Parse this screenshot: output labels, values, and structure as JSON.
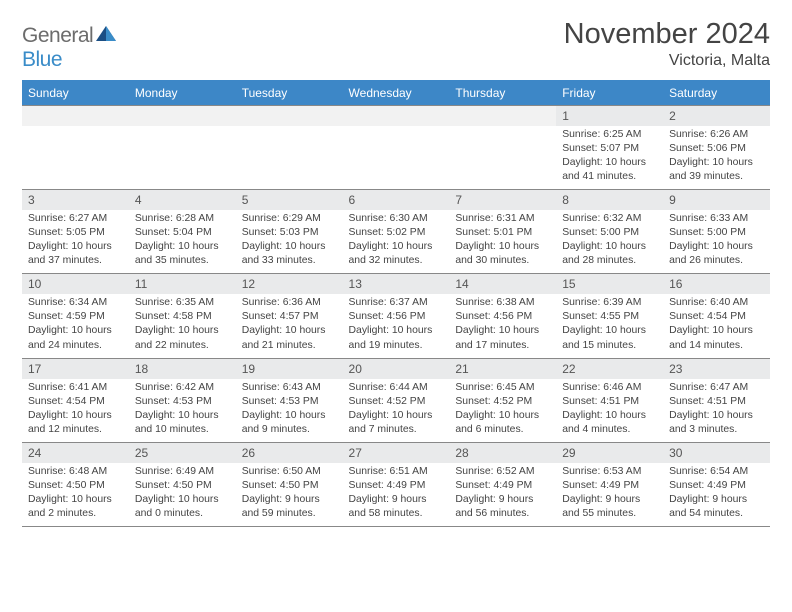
{
  "logo": {
    "text1": "General",
    "text2": "Blue"
  },
  "title": "November 2024",
  "location": "Victoria, Malta",
  "dow": [
    "Sunday",
    "Monday",
    "Tuesday",
    "Wednesday",
    "Thursday",
    "Friday",
    "Saturday"
  ],
  "colors": {
    "header_bg": "#3d87c7",
    "daynum_bg": "#e9eaeb",
    "accent": "#3a8cc8"
  },
  "weeks": [
    {
      "nums": [
        "",
        "",
        "",
        "",
        "",
        "1",
        "2"
      ],
      "cells": [
        "",
        "",
        "",
        "",
        "",
        "Sunrise: 6:25 AM\nSunset: 5:07 PM\nDaylight: 10 hours and 41 minutes.",
        "Sunrise: 6:26 AM\nSunset: 5:06 PM\nDaylight: 10 hours and 39 minutes."
      ]
    },
    {
      "nums": [
        "3",
        "4",
        "5",
        "6",
        "7",
        "8",
        "9"
      ],
      "cells": [
        "Sunrise: 6:27 AM\nSunset: 5:05 PM\nDaylight: 10 hours and 37 minutes.",
        "Sunrise: 6:28 AM\nSunset: 5:04 PM\nDaylight: 10 hours and 35 minutes.",
        "Sunrise: 6:29 AM\nSunset: 5:03 PM\nDaylight: 10 hours and 33 minutes.",
        "Sunrise: 6:30 AM\nSunset: 5:02 PM\nDaylight: 10 hours and 32 minutes.",
        "Sunrise: 6:31 AM\nSunset: 5:01 PM\nDaylight: 10 hours and 30 minutes.",
        "Sunrise: 6:32 AM\nSunset: 5:00 PM\nDaylight: 10 hours and 28 minutes.",
        "Sunrise: 6:33 AM\nSunset: 5:00 PM\nDaylight: 10 hours and 26 minutes."
      ]
    },
    {
      "nums": [
        "10",
        "11",
        "12",
        "13",
        "14",
        "15",
        "16"
      ],
      "cells": [
        "Sunrise: 6:34 AM\nSunset: 4:59 PM\nDaylight: 10 hours and 24 minutes.",
        "Sunrise: 6:35 AM\nSunset: 4:58 PM\nDaylight: 10 hours and 22 minutes.",
        "Sunrise: 6:36 AM\nSunset: 4:57 PM\nDaylight: 10 hours and 21 minutes.",
        "Sunrise: 6:37 AM\nSunset: 4:56 PM\nDaylight: 10 hours and 19 minutes.",
        "Sunrise: 6:38 AM\nSunset: 4:56 PM\nDaylight: 10 hours and 17 minutes.",
        "Sunrise: 6:39 AM\nSunset: 4:55 PM\nDaylight: 10 hours and 15 minutes.",
        "Sunrise: 6:40 AM\nSunset: 4:54 PM\nDaylight: 10 hours and 14 minutes."
      ]
    },
    {
      "nums": [
        "17",
        "18",
        "19",
        "20",
        "21",
        "22",
        "23"
      ],
      "cells": [
        "Sunrise: 6:41 AM\nSunset: 4:54 PM\nDaylight: 10 hours and 12 minutes.",
        "Sunrise: 6:42 AM\nSunset: 4:53 PM\nDaylight: 10 hours and 10 minutes.",
        "Sunrise: 6:43 AM\nSunset: 4:53 PM\nDaylight: 10 hours and 9 minutes.",
        "Sunrise: 6:44 AM\nSunset: 4:52 PM\nDaylight: 10 hours and 7 minutes.",
        "Sunrise: 6:45 AM\nSunset: 4:52 PM\nDaylight: 10 hours and 6 minutes.",
        "Sunrise: 6:46 AM\nSunset: 4:51 PM\nDaylight: 10 hours and 4 minutes.",
        "Sunrise: 6:47 AM\nSunset: 4:51 PM\nDaylight: 10 hours and 3 minutes."
      ]
    },
    {
      "nums": [
        "24",
        "25",
        "26",
        "27",
        "28",
        "29",
        "30"
      ],
      "cells": [
        "Sunrise: 6:48 AM\nSunset: 4:50 PM\nDaylight: 10 hours and 2 minutes.",
        "Sunrise: 6:49 AM\nSunset: 4:50 PM\nDaylight: 10 hours and 0 minutes.",
        "Sunrise: 6:50 AM\nSunset: 4:50 PM\nDaylight: 9 hours and 59 minutes.",
        "Sunrise: 6:51 AM\nSunset: 4:49 PM\nDaylight: 9 hours and 58 minutes.",
        "Sunrise: 6:52 AM\nSunset: 4:49 PM\nDaylight: 9 hours and 56 minutes.",
        "Sunrise: 6:53 AM\nSunset: 4:49 PM\nDaylight: 9 hours and 55 minutes.",
        "Sunrise: 6:54 AM\nSunset: 4:49 PM\nDaylight: 9 hours and 54 minutes."
      ]
    }
  ]
}
